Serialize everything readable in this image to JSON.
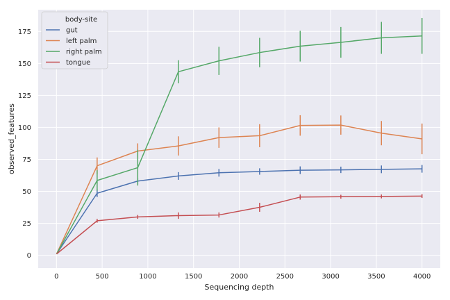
{
  "chart_data": {
    "type": "line",
    "xlabel": "Sequencing depth",
    "ylabel": "observed_features",
    "xlim": [
      -200,
      4200
    ],
    "ylim": [
      -10,
      192
    ],
    "xticks": [
      0,
      500,
      1000,
      1500,
      2000,
      2500,
      3000,
      3500,
      4000
    ],
    "yticks": [
      0,
      25,
      50,
      75,
      100,
      125,
      150,
      175
    ],
    "grid": true,
    "legend_title": "body-site",
    "legend_position": "top-left",
    "x": [
      1,
      445,
      889,
      1334,
      1778,
      2223,
      2667,
      3112,
      3556,
      4000
    ],
    "series": [
      {
        "name": "gut",
        "color": "#4c72b0",
        "values": [
          1,
          48.5,
          58,
          62,
          64.5,
          65.5,
          66.5,
          66.8,
          67.2,
          67.6
        ],
        "errors": [
          0,
          3,
          2.5,
          3,
          3,
          2.5,
          3,
          2.5,
          3,
          3
        ]
      },
      {
        "name": "left palm",
        "color": "#dd8452",
        "values": [
          1,
          70,
          81.5,
          85.5,
          92,
          93.5,
          101.5,
          101.8,
          95.5,
          91
        ],
        "errors": [
          0,
          6.5,
          6,
          7.5,
          8,
          9,
          8,
          7.5,
          9.5,
          12
        ]
      },
      {
        "name": "right palm",
        "color": "#55a868",
        "values": [
          1,
          58.5,
          68.5,
          143.5,
          152,
          158.5,
          163.5,
          166.5,
          170,
          171.5
        ],
        "errors": [
          0,
          8,
          14,
          9,
          11,
          11.5,
          12,
          12,
          12.5,
          14
        ]
      },
      {
        "name": "tongue",
        "color": "#c44e52",
        "values": [
          1,
          27,
          30,
          31,
          31.5,
          37.5,
          45.5,
          45.8,
          46,
          46.3
        ],
        "errors": [
          0,
          1.5,
          1.5,
          2.5,
          2,
          3.5,
          2,
          1.5,
          1.5,
          1.5
        ]
      }
    ]
  }
}
